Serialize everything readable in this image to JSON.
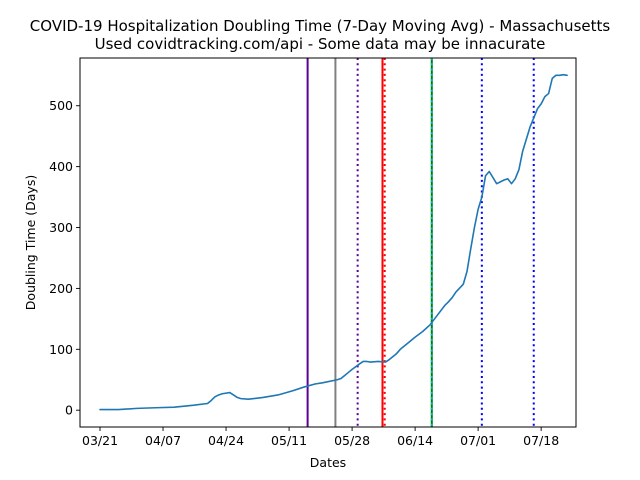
{
  "chart_data": {
    "type": "line",
    "title": "COVID-19 Hospitalization Doubling Time (7-Day Moving Avg) - Massachusetts",
    "subtitle": "Used covidtracking.com/api - Some data may be innacurate",
    "xlabel": "Dates",
    "ylabel": "Doubling Time (Days)",
    "xlim": [
      -5.4,
      128.4
    ],
    "ylim": [
      -27.6,
      578.4
    ],
    "grid": false,
    "legend": "none",
    "x_ticks": [
      {
        "label": "03/21",
        "x": 0
      },
      {
        "label": "04/07",
        "x": 17
      },
      {
        "label": "04/24",
        "x": 34
      },
      {
        "label": "05/11",
        "x": 51
      },
      {
        "label": "05/28",
        "x": 68
      },
      {
        "label": "06/14",
        "x": 85
      },
      {
        "label": "07/01",
        "x": 102
      },
      {
        "label": "07/18",
        "x": 119
      }
    ],
    "y_ticks": [
      0,
      100,
      200,
      300,
      400,
      500
    ],
    "series": [
      {
        "color": "#1f77b4",
        "x": [
          0,
          5,
          10,
          15,
          20,
          25,
          29,
          30,
          31,
          32,
          33,
          35,
          36,
          37,
          38,
          40,
          44,
          48,
          52,
          55,
          58,
          60,
          64,
          65,
          66,
          67,
          68,
          70,
          71,
          72,
          73,
          75,
          77,
          78,
          80,
          81,
          83,
          85,
          87,
          89,
          91,
          93,
          94,
          95,
          96,
          98,
          99,
          100,
          101,
          102,
          103,
          104,
          105,
          107,
          108,
          109,
          110,
          111,
          112,
          113,
          114,
          115,
          116,
          117,
          118,
          119,
          120,
          121,
          122,
          123,
          124,
          125,
          126
        ],
        "values": [
          1,
          1,
          3,
          4,
          5,
          8,
          11,
          16,
          22,
          25,
          27,
          29,
          25,
          21,
          19,
          18,
          21,
          25,
          32,
          38,
          43,
          45,
          50,
          52,
          57,
          62,
          67,
          76,
          80,
          80,
          79,
          80,
          79,
          83,
          93,
          100,
          110,
          120,
          129,
          140,
          156,
          172,
          178,
          185,
          194,
          207,
          228,
          265,
          300,
          330,
          350,
          385,
          392,
          372,
          375,
          378,
          380,
          372,
          380,
          395,
          425,
          445,
          465,
          480,
          495,
          503,
          515,
          520,
          545,
          550,
          550,
          551,
          550
        ]
      }
    ],
    "vlines": [
      {
        "x": 56,
        "color": "#5c0099",
        "style": "solid"
      },
      {
        "x": 63.5,
        "color": "#808080",
        "style": "solid"
      },
      {
        "x": 69.5,
        "color": "#5c0099",
        "style": "dotted"
      },
      {
        "x": 76.2,
        "color": "#ff0000",
        "style": "solid"
      },
      {
        "x": 76.8,
        "color": "#ff0000",
        "style": "dotted"
      },
      {
        "x": 89.5,
        "color": "#008000",
        "style": "solid"
      },
      {
        "x": 89.5,
        "color": "#00bcd4",
        "style": "dotted"
      },
      {
        "x": 103,
        "color": "#0000ff",
        "style": "dotted"
      },
      {
        "x": 117,
        "color": "#0000ff",
        "style": "dotted"
      }
    ]
  }
}
